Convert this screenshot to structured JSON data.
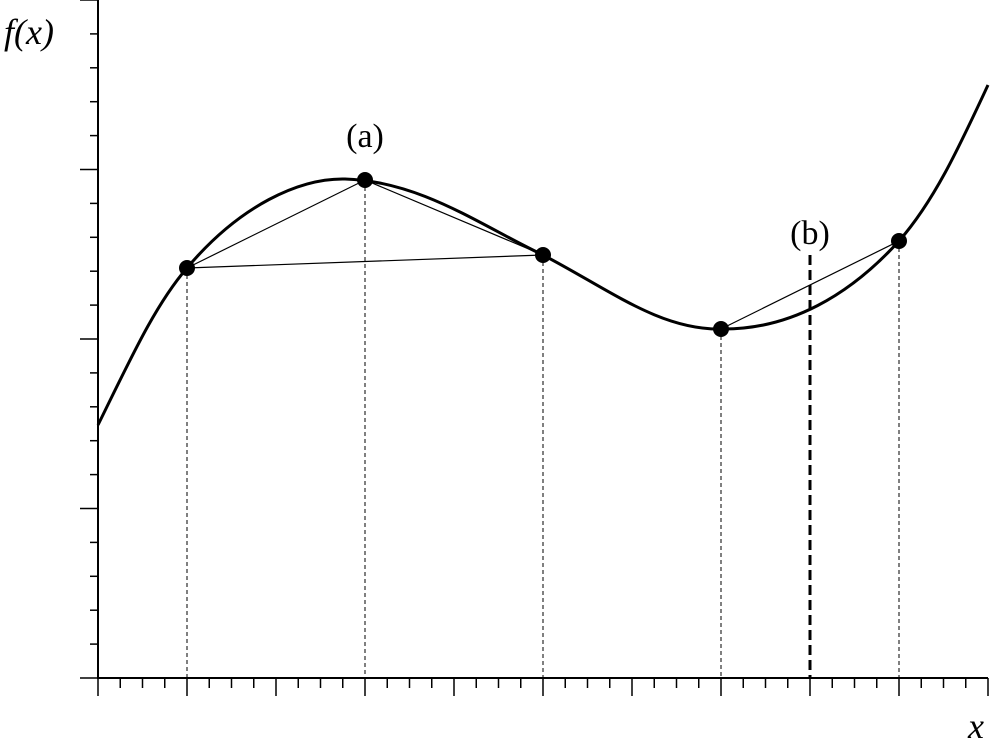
{
  "axes": {
    "y_label": "f(x)",
    "x_label": "x"
  },
  "annotations": {
    "a": "(a)",
    "b": "(b)"
  }
}
